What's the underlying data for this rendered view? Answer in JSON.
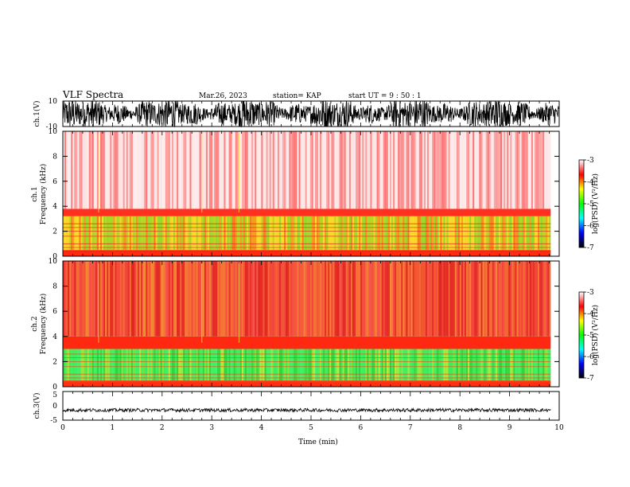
{
  "header": {
    "title": "VLF Spectra",
    "date": "Mar.26, 2023",
    "station": "station= KAP",
    "start": "start  UT =   9 : 50 : 1"
  },
  "colorbar": {
    "ticks": [
      "-3",
      "-4",
      "-5",
      "-6",
      "-7"
    ],
    "label": "log(PSD) (V²/Hz)",
    "stops": [
      "#ffffff",
      "#ff0000",
      "#ffff00",
      "#00ff00",
      "#00ffff",
      "#0000ff",
      "#000000"
    ]
  },
  "chart_data": [
    {
      "type": "line",
      "panel": "ch1-waveform",
      "ylabel": "ch.1(V)",
      "ylim": [
        -10,
        10
      ],
      "yticks": [
        "10",
        "-10"
      ],
      "xlim": [
        0,
        10
      ],
      "description_values": "dense black waveform, amplitude roughly -10 to +10 V"
    },
    {
      "type": "heatmap",
      "panel": "ch1-spectrogram",
      "ylabel": "ch.1\nFrequency  (kHz)",
      "ylabel_lines": [
        "ch.1",
        "Frequency  (kHz)"
      ],
      "ylim": [
        0,
        10
      ],
      "yticks": [
        "0",
        "2",
        "4",
        "6",
        "8",
        "10"
      ],
      "xlim": [
        0,
        9.83
      ],
      "zlim": [
        -7,
        -3
      ],
      "bands": [
        {
          "from_khz": 0,
          "to_khz": 0.5,
          "color": "#ff2a10"
        },
        {
          "from_khz": 0.5,
          "to_khz": 3.2,
          "color": "#f0d020"
        },
        {
          "from_khz": 3.2,
          "to_khz": 3.8,
          "color": "#ff3020"
        },
        {
          "from_khz": 3.8,
          "to_khz": 10,
          "color": "#fbd8d8"
        }
      ]
    },
    {
      "type": "heatmap",
      "panel": "ch2-spectrogram",
      "ylabel_lines": [
        "ch.2",
        "Frequency  (kHz)"
      ],
      "ylim": [
        0,
        10
      ],
      "yticks": [
        "0",
        "2",
        "4",
        "6",
        "8",
        "10"
      ],
      "xlim": [
        0,
        9.83
      ],
      "zlim": [
        -7,
        -3
      ],
      "bands": [
        {
          "from_khz": 0,
          "to_khz": 0.5,
          "color": "#ff3010"
        },
        {
          "from_khz": 0.5,
          "to_khz": 3.0,
          "color": "#40e040"
        },
        {
          "from_khz": 3.0,
          "to_khz": 4.0,
          "color": "#ff2810"
        },
        {
          "from_khz": 4.0,
          "to_khz": 10,
          "color": "#f03a30"
        }
      ]
    },
    {
      "type": "line",
      "panel": "ch3-waveform",
      "ylabel": "ch.3(V)",
      "ylim": [
        -5,
        5
      ],
      "yticks": [
        "5",
        "0",
        "-5"
      ],
      "xlim": [
        0,
        10
      ],
      "xlabel": "Time  (min)",
      "xticks": [
        "0",
        "1",
        "2",
        "3",
        "4",
        "5",
        "6",
        "7",
        "8",
        "9",
        "10"
      ],
      "baseline_v": -1.5
    }
  ]
}
